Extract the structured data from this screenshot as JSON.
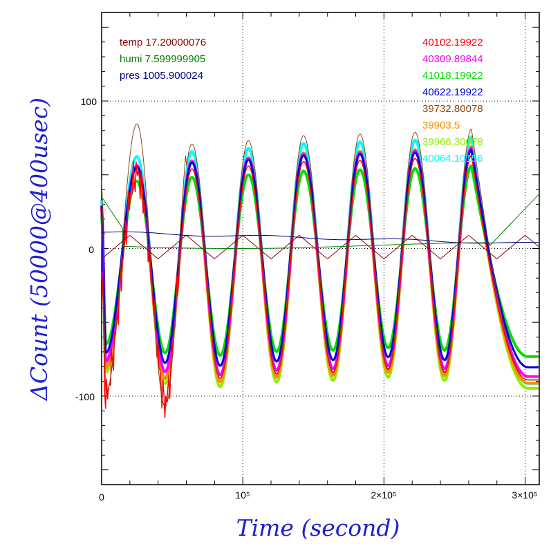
{
  "chart_data": {
    "type": "line",
    "xlabel": "Time (second)",
    "ylabel": "ΔCount (50000@400usec)",
    "xlim": [
      0,
      310000
    ],
    "ylim": [
      -160,
      160
    ],
    "grid": "dotted at major ticks",
    "x_ticks": [
      {
        "value": 0,
        "label": "0"
      },
      {
        "value": 100000,
        "label": "10⁵"
      },
      {
        "value": 200000,
        "label": "2×10⁵"
      },
      {
        "value": 300000,
        "label": "3×10⁵"
      }
    ],
    "y_ticks": [
      {
        "value": 100,
        "label": "100"
      },
      {
        "value": 0,
        "label": "0"
      },
      {
        "value": -100,
        "label": "-100"
      }
    ],
    "env_series": [
      {
        "label": "temp 17.20000076",
        "color": "#8b0000"
      },
      {
        "label": "humi 7.599999905",
        "color": "#008000"
      },
      {
        "label": "pres 1005.900024",
        "color": "#000080"
      }
    ],
    "count_series": [
      {
        "label": "40102.19922",
        "color": "#ff0000"
      },
      {
        "label": "40309.89844",
        "color": "#ff00ff"
      },
      {
        "label": "41018.19922",
        "color": "#00e000"
      },
      {
        "label": "40622.19922",
        "color": "#0000dd"
      },
      {
        "label": "39732.80078",
        "color": "#8b4513"
      },
      {
        "label": "39903.5",
        "color": "#ff8c00"
      },
      {
        "label": "39966.30078",
        "color": "#90ee00"
      },
      {
        "label": "40064.10156",
        "color": "#00ffff"
      }
    ],
    "peaks": [
      {
        "t": 25000,
        "v": 55
      },
      {
        "t": 64000,
        "v": 58
      },
      {
        "t": 104000,
        "v": 60
      },
      {
        "t": 143000,
        "v": 63
      },
      {
        "t": 183000,
        "v": 64
      },
      {
        "t": 222000,
        "v": 65
      },
      {
        "t": 262000,
        "v": 67
      }
    ],
    "troughs": [
      {
        "t": 3000,
        "v": -75
      },
      {
        "t": 45000,
        "v": -82
      },
      {
        "t": 84000,
        "v": -84
      },
      {
        "t": 124000,
        "v": -81
      },
      {
        "t": 164000,
        "v": -80
      },
      {
        "t": 203000,
        "v": -78
      },
      {
        "t": 243000,
        "v": -80
      }
    ]
  }
}
